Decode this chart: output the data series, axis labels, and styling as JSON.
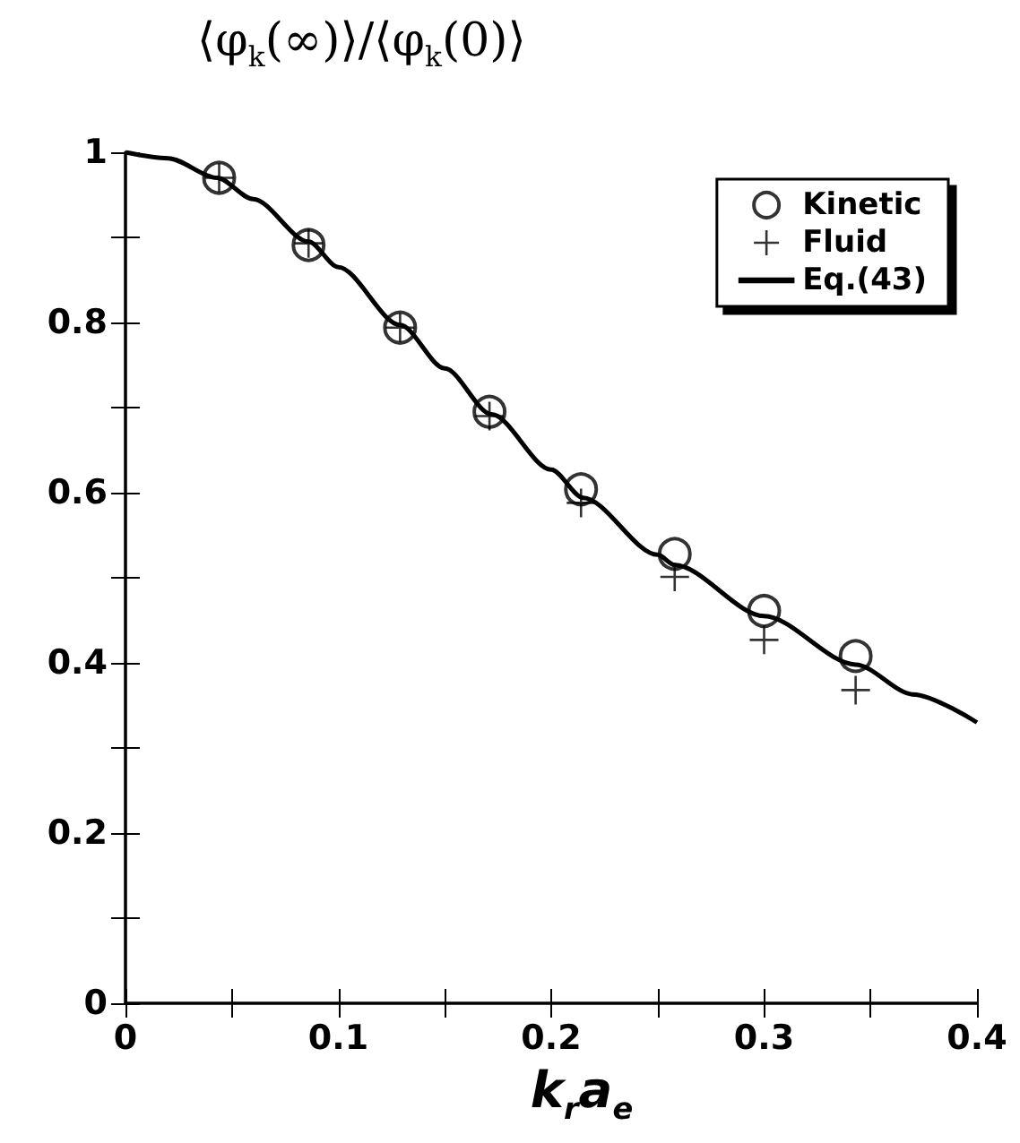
{
  "chart_data": {
    "type": "scatter",
    "title": "⟨φ$_{k}$(∞)⟩/⟨φ$_{k}$(0)⟩",
    "xlabel": "k$_{r}$a$_{e}$",
    "xlim": [
      0,
      0.4
    ],
    "xticks": [
      0,
      {
        "value": 0.05,
        "label": null
      },
      0.1,
      {
        "value": 0.15,
        "label": null
      },
      0.2,
      {
        "value": 0.25,
        "label": null
      },
      0.3,
      {
        "value": 0.35,
        "label": null
      },
      0.4
    ],
    "ylim": [
      0,
      1
    ],
    "yticks": [
      0,
      {
        "value": 0.1,
        "label": null
      },
      0.2,
      {
        "value": 0.3,
        "label": null
      },
      0.4,
      {
        "value": 0.5,
        "label": null
      },
      0.6,
      {
        "value": 0.7,
        "label": null
      },
      0.8,
      {
        "value": 0.9,
        "label": null
      },
      1
    ],
    "grid": false,
    "legend": "top right",
    "series": [
      {
        "name": "Kinetic",
        "marker": "circle",
        "color": "#000000",
        "x": [
          0.044,
          0.086,
          0.129,
          0.171,
          0.214,
          0.258,
          0.3,
          0.343
        ],
        "values": [
          0.97,
          0.891,
          0.794,
          0.695,
          0.604,
          0.528,
          0.461,
          0.408
        ]
      },
      {
        "name": "Fluid",
        "marker": "cross",
        "color": "#000000",
        "x": [
          0.044,
          0.086,
          0.129,
          0.171,
          0.214,
          0.258,
          0.3,
          0.343
        ],
        "values": [
          0.97,
          0.893,
          0.794,
          0.69,
          0.588,
          0.501,
          0.427,
          0.368
        ]
      },
      {
        "name": "Eq.(43)",
        "type": "line",
        "marker": "none",
        "line_style": "solid",
        "color": "#000000",
        "x": [
          0,
          0.02,
          0.043,
          0.06,
          0.086,
          0.1,
          0.129,
          0.15,
          0.172,
          0.2,
          0.215,
          0.25,
          0.258,
          0.3,
          0.343,
          0.37,
          0.4
        ],
        "values": [
          1,
          0.993,
          0.97,
          0.945,
          0.895,
          0.865,
          0.797,
          0.746,
          0.692,
          0.627,
          0.594,
          0.527,
          0.515,
          0.455,
          0.398,
          0.363,
          0.33
        ]
      }
    ]
  }
}
